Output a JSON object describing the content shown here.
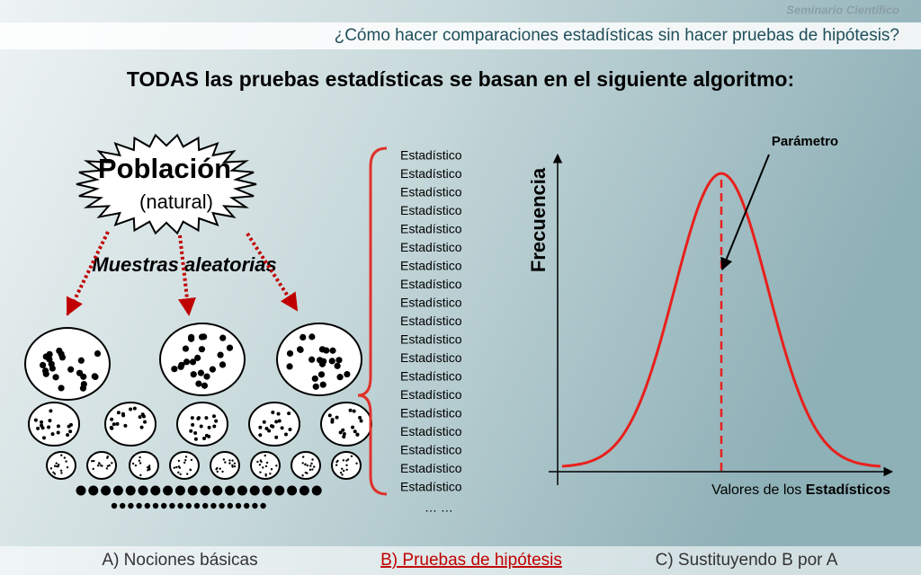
{
  "header": {
    "brand": "Seminario Científico",
    "subtitle": "¿Cómo hacer comparaciones estadísticas sin hacer pruebas de hipótesis?"
  },
  "title": "TODAS las pruebas estadísticas se basan en el siguiente algoritmo:",
  "population": {
    "title": "Población",
    "subtitle": "(natural)"
  },
  "samples_label": "Muestras aleatorias",
  "statistics": [
    "Estadístico",
    "Estadístico",
    "Estadístico",
    "Estadístico",
    "Estadístico",
    "Estadístico",
    "Estadístico",
    "Estadístico",
    "Estadístico",
    "Estadístico",
    "Estadístico",
    "Estadístico",
    "Estadístico",
    "Estadístico",
    "Estadístico",
    "Estadístico",
    "Estadístico",
    "Estadístico",
    "Estadístico"
  ],
  "statistics_more": "… …",
  "plot": {
    "y_label": "Frecuencia",
    "x_label": {
      "text": "Valores de los",
      "emphasis": "Estadísticos"
    },
    "annotation": "Parámetro"
  },
  "footer": {
    "items": [
      "A) Nociones básicas",
      "B) Pruebas de hipótesis",
      "C) Sustituyendo B por A"
    ]
  }
}
